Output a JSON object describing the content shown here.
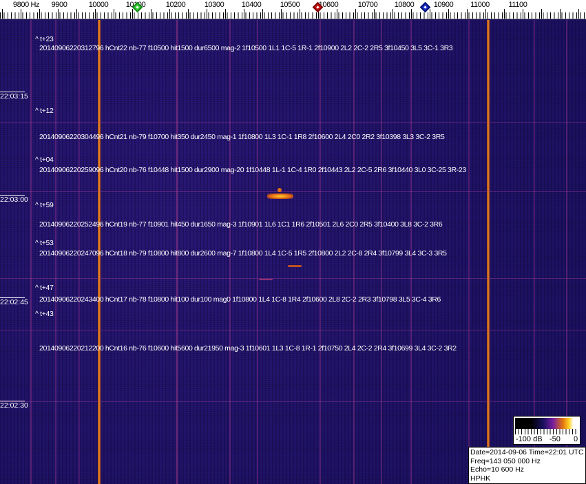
{
  "axis": {
    "ticks": [
      "9800 Hz",
      "9900",
      "10000",
      "10100",
      "10200",
      "10300",
      "10400",
      "10500",
      "10600",
      "10700",
      "10800",
      "10900",
      "11000",
      "11100"
    ]
  },
  "markers": [
    {
      "name": "green-marker",
      "color": "#22c022"
    },
    {
      "name": "red-marker",
      "color": "#d01010"
    },
    {
      "name": "blue-marker",
      "color": "#1020c0"
    }
  ],
  "time_labels": [
    "22:03:15",
    "22:03:00",
    "22:02:45",
    "22:02:30"
  ],
  "offsets": [
    "^ t+23",
    "^ t+12",
    "^ t+04",
    "^ t+59",
    "^ t+53",
    "^ t+47",
    "^ t+43"
  ],
  "detections": [
    "20140906220312796 hCnt22 nb-77 f10500 hit1500 dur6500 mag-2 1f10500 1L1 1C-5 1R-1 2f10900 2L2 2C-2 2R5 3f10450 3L5 3C-1 3R3",
    "20140906220304496 hCnt21 nb-79 f10700 hit350 dur2450 mag-1 1f10800 1L3 1C-1 1R8 2f10600 2L4 2C0 2R2 3f10398 3L3 3C-2 3R5",
    "20140906220259096 hCnt20 nb-76 f10448 hit1500 dur2900 mag-20 1f10448 1L-1 1C-4 1R0 2f10443 2L2 2C-5 2R6 3f10440 3L0 3C-25 3R-23",
    "20140906220252496 hCnt19 nb-77 f10901 hit450 dur1650 mag-3 1f10901 1L6 1C1 1R6 2f10501 2L6 2C0 2R5 3f10400 3L8 3C-2 3R6",
    "20140906220247096 hCnt18 nb-79 f10800 hit800 dur2600 mag-7 1f10800 1L4 1C-5 1R5 2f10800 2L2 2C-8 2R4 3f10799 3L4 3C-3 3R5",
    "20140906220243400 hCnt17 nb-78 f10800 hit100 dur100 mag0 1f10800 1L4 1C-8 1R4 2f10600 2L8 2C-2 2R3 3f10798 3L5 3C-4 3R6",
    "20140906220212200 hCnt16 nb-76 f10600 hit5600 dur21950 mag-3 1f10601 1L3 1C-8 1R-1 2f10750 2L4 2C-2 2R4 3f10699 3L4 3C-2 3R2"
  ],
  "scale": {
    "min": "-100 dB",
    "mid": "-50",
    "max": "0"
  },
  "info": {
    "date": "Date=2014-09-06 Time=22:01 UTC",
    "freq": "Freq=143 050 000 Hz",
    "echo": "Echo=10 600 Hz",
    "station": "HPHK"
  }
}
